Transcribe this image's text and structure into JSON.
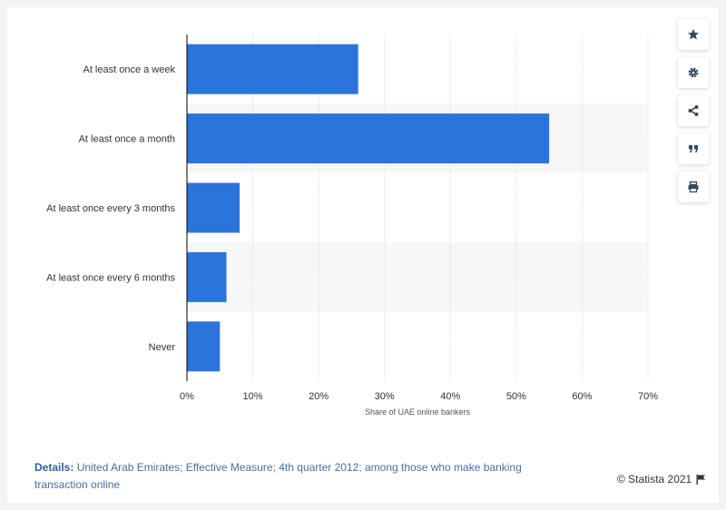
{
  "toolbar": {
    "icons": [
      "star-icon",
      "gear-icon",
      "share-icon",
      "quote-icon",
      "print-icon"
    ]
  },
  "footer": {
    "details_label": "Details:",
    "details_text": "United Arab Emirates; Effective Measure; 4th quarter 2012; among those who make banking transaction online",
    "credit": "© Statista 2021"
  },
  "colors": {
    "bar": "#2b74dc",
    "band": "#f7f7f7",
    "grid": "#d0d0d0",
    "axis": "#000000"
  },
  "chart_data": {
    "type": "bar",
    "orientation": "horizontal",
    "categories": [
      "At least once a week",
      "At least once a month",
      "At least once every 3 months",
      "At least once every 6 months",
      "Never"
    ],
    "values": [
      26,
      55,
      8,
      6,
      5
    ],
    "xlabel": "Share of UAE online bankers",
    "ylabel": "",
    "xlim": [
      0,
      70
    ],
    "xticks": [
      0,
      10,
      20,
      30,
      40,
      50,
      60,
      70
    ],
    "xtick_labels": [
      "0%",
      "10%",
      "20%",
      "30%",
      "40%",
      "50%",
      "60%",
      "70%"
    ],
    "grid": true
  }
}
